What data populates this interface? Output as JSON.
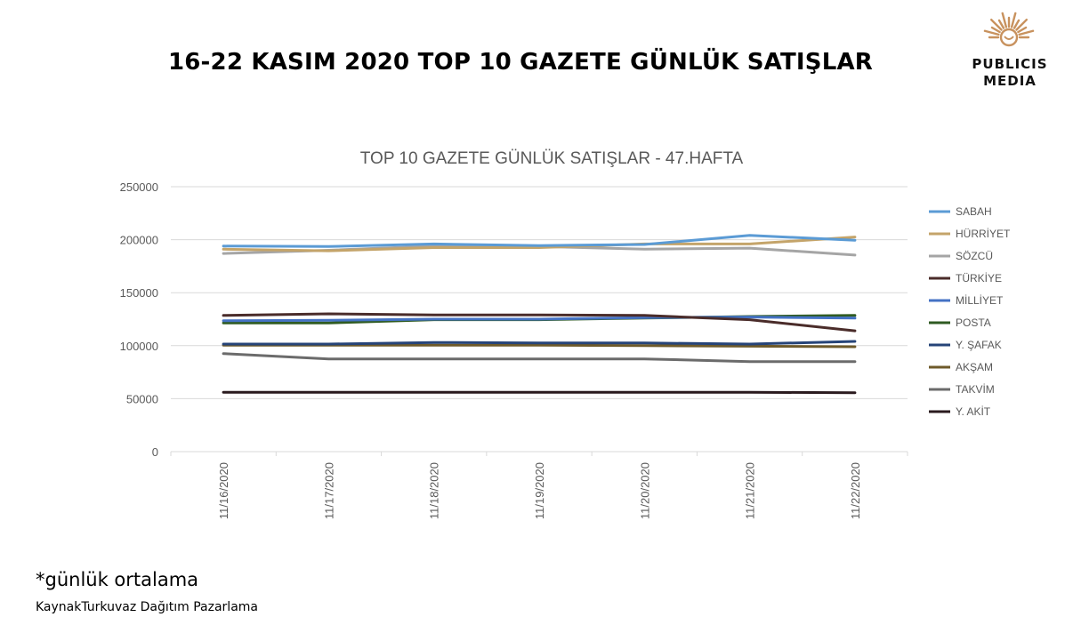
{
  "page": {
    "title": "16-22 KASIM 2020 TOP 10 GAZETE GÜNLÜK SATIŞLAR",
    "footnote": "*günlük ortalama",
    "source": "KaynakTurkuvaz Dağıtım Pazarlama"
  },
  "logo": {
    "line1": "PUBLICIS",
    "line2": "MEDIA",
    "icon": "lion-head-icon",
    "color": "#C8925E"
  },
  "chart_data": {
    "type": "line",
    "title": "TOP 10 GAZETE GÜNLÜK SATIŞLAR - 47.HAFTA",
    "xlabel": "",
    "ylabel": "",
    "ylim": [
      0,
      250000
    ],
    "yticks": [
      "0",
      "50000",
      "100000",
      "150000",
      "200000",
      "250000"
    ],
    "grid": true,
    "legend": "right",
    "categories": [
      "11/16/2020",
      "11/17/2020",
      "11/18/2020",
      "11/19/2020",
      "11/20/2020",
      "11/21/2020",
      "11/22/2020"
    ],
    "series": [
      {
        "name": "SABAH",
        "color": "#5B9BD5",
        "values": [
          194000,
          193500,
          196000,
          194500,
          195500,
          204000,
          199500
        ]
      },
      {
        "name": "HÜRRİYET",
        "color": "#C4A46A",
        "values": [
          191000,
          189500,
          192500,
          192500,
          196000,
          196000,
          202500
        ]
      },
      {
        "name": "SÖZCÜ",
        "color": "#A5A5A5",
        "values": [
          187000,
          190000,
          194000,
          193500,
          191000,
          192000,
          185500
        ]
      },
      {
        "name": "TÜRKİYE",
        "color": "#4A2C2A",
        "values": [
          128500,
          130000,
          129000,
          129000,
          128500,
          124500,
          114000
        ]
      },
      {
        "name": "MİLLİYET",
        "color": "#4472C4",
        "values": [
          123500,
          124000,
          125000,
          125000,
          126500,
          127000,
          126000
        ]
      },
      {
        "name": "POSTA",
        "color": "#2F5B22",
        "values": [
          121500,
          121500,
          124500,
          124500,
          126000,
          127500,
          128500
        ]
      },
      {
        "name": "Y. ŞAFAK",
        "color": "#264478",
        "values": [
          101500,
          101500,
          103000,
          102500,
          102500,
          101500,
          104000
        ]
      },
      {
        "name": "AKŞAM",
        "color": "#6E5A2A",
        "values": [
          100500,
          100500,
          100500,
          100500,
          100000,
          99500,
          99000
        ]
      },
      {
        "name": "TAKVİM",
        "color": "#6B6B6B",
        "values": [
          92500,
          87500,
          87500,
          87500,
          87500,
          85000,
          85000
        ]
      },
      {
        "name": "Y. AKİT",
        "color": "#2A1A1E",
        "values": [
          56000,
          56000,
          56000,
          56000,
          56000,
          56000,
          55500
        ]
      }
    ]
  }
}
